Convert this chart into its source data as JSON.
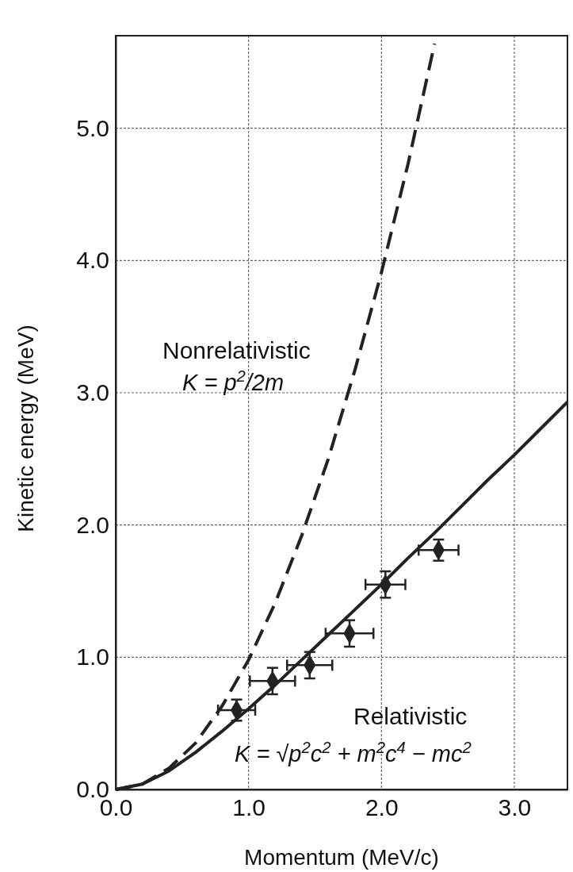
{
  "chart_data": {
    "type": "line",
    "xlabel": "Momentum (MeV/c)",
    "ylabel": "Kinetic energy (MeV)",
    "xlim": [
      0,
      3.4
    ],
    "ylim": [
      0,
      5.7
    ],
    "xticks": [
      {
        "value": 0,
        "label": "0.0"
      },
      {
        "value": 1,
        "label": "1.0"
      },
      {
        "value": 2,
        "label": "2.0"
      },
      {
        "value": 3,
        "label": "3.0"
      }
    ],
    "yticks": [
      {
        "value": 0,
        "label": "0.0"
      },
      {
        "value": 1,
        "label": "1.0"
      },
      {
        "value": 2,
        "label": "2.0"
      },
      {
        "value": 3,
        "label": "3.0"
      },
      {
        "value": 4,
        "label": "4.0"
      },
      {
        "value": 5,
        "label": "5.0"
      }
    ],
    "grid": true,
    "series": [
      {
        "name": "Nonrelativistic",
        "type": "line",
        "line_style": "dashed",
        "color": "#222222",
        "x": [
          0,
          0.2,
          0.4,
          0.6,
          0.8,
          1.0,
          1.2,
          1.4,
          1.6,
          1.8,
          2.0,
          2.2,
          2.4
        ],
        "values": [
          0,
          0.04,
          0.16,
          0.35,
          0.63,
          0.98,
          1.41,
          1.92,
          2.5,
          3.17,
          3.91,
          4.73,
          5.64
        ]
      },
      {
        "name": "Relativistic",
        "type": "line",
        "line_style": "solid",
        "color": "#222222",
        "x": [
          0,
          0.2,
          0.4,
          0.6,
          0.8,
          1.0,
          1.2,
          1.4,
          1.6,
          1.8,
          2.0,
          2.2,
          2.4,
          2.6,
          2.8,
          3.0,
          3.2,
          3.4
        ],
        "values": [
          0,
          0.04,
          0.14,
          0.28,
          0.44,
          0.61,
          0.79,
          0.98,
          1.17,
          1.36,
          1.55,
          1.75,
          1.94,
          2.14,
          2.34,
          2.53,
          2.73,
          2.93
        ]
      },
      {
        "type": "scatter",
        "marker": "diamond",
        "color": "#222222",
        "x": [
          0.91,
          1.18,
          1.46,
          1.76,
          2.03,
          2.43
        ],
        "values": [
          0.6,
          0.82,
          0.94,
          1.18,
          1.55,
          1.81
        ],
        "errors": [
          0.08,
          0.1,
          0.1,
          0.1,
          0.1,
          0.08
        ],
        "xerrors": [
          0.14,
          0.17,
          0.17,
          0.18,
          0.15,
          0.15
        ]
      }
    ],
    "annotations": [
      "K = p$^{2}$/2m",
      "K = √p$^{2}$c$^{2}$ + m$^{2}$c$^{4}$ − mc$^{2}$"
    ]
  }
}
